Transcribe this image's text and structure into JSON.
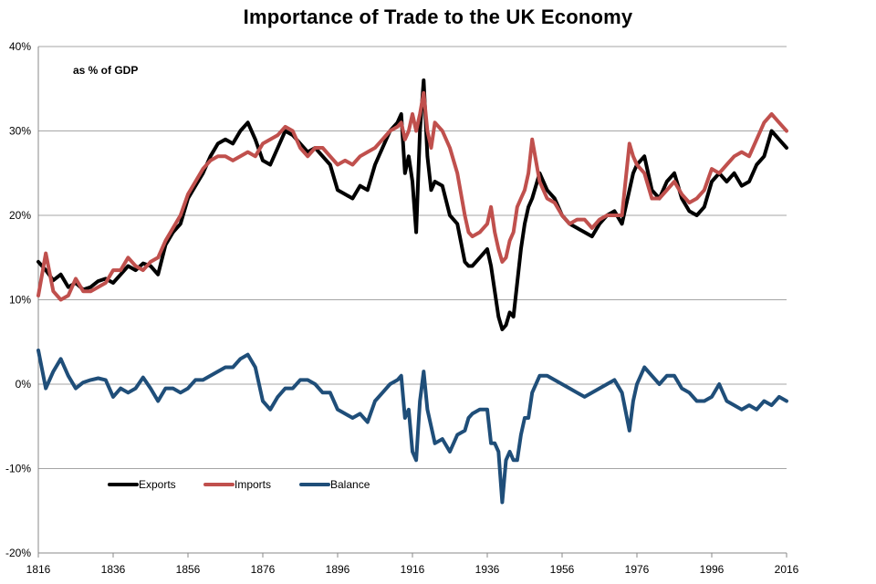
{
  "chart_data": {
    "type": "line",
    "title": "Importance of Trade to the UK Economy",
    "annotation": "as % of GDP",
    "xlabel": "",
    "ylabel": "",
    "xlim": [
      1816,
      2016
    ],
    "ylim": [
      -20,
      40
    ],
    "y_ticks": [
      "-20%",
      "-10%",
      "0%",
      "10%",
      "20%",
      "30%",
      "40%"
    ],
    "x_ticks": [
      "1816",
      "1836",
      "1856",
      "1876",
      "1896",
      "1916",
      "1936",
      "1956",
      "1976",
      "1996",
      "2016"
    ],
    "grid": "horizontal",
    "legend_position": "bottom-left",
    "series": [
      {
        "name": "Exports",
        "color": "#000000",
        "x": [
          1816,
          1818,
          1820,
          1822,
          1824,
          1826,
          1828,
          1830,
          1832,
          1834,
          1836,
          1838,
          1840,
          1842,
          1844,
          1846,
          1848,
          1850,
          1852,
          1854,
          1856,
          1858,
          1860,
          1862,
          1864,
          1866,
          1868,
          1870,
          1872,
          1874,
          1876,
          1878,
          1880,
          1882,
          1884,
          1886,
          1888,
          1890,
          1892,
          1894,
          1896,
          1898,
          1900,
          1902,
          1904,
          1906,
          1908,
          1910,
          1912,
          1913,
          1914,
          1915,
          1916,
          1917,
          1918,
          1919,
          1920,
          1921,
          1922,
          1924,
          1926,
          1928,
          1930,
          1931,
          1932,
          1934,
          1936,
          1937,
          1938,
          1939,
          1940,
          1941,
          1942,
          1943,
          1944,
          1945,
          1946,
          1947,
          1948,
          1950,
          1952,
          1954,
          1956,
          1958,
          1960,
          1962,
          1964,
          1966,
          1968,
          1970,
          1972,
          1974,
          1975,
          1976,
          1978,
          1980,
          1982,
          1984,
          1986,
          1988,
          1990,
          1992,
          1994,
          1996,
          1998,
          2000,
          2002,
          2004,
          2006,
          2008,
          2010,
          2012,
          2014,
          2016
        ],
        "values": [
          14.5,
          13.5,
          12.3,
          13.0,
          11.5,
          12.0,
          11.2,
          11.5,
          12.2,
          12.5,
          12.0,
          13.0,
          14.0,
          13.5,
          14.3,
          14.0,
          13.0,
          16.5,
          18.0,
          19.0,
          22.0,
          23.5,
          25.0,
          27.0,
          28.5,
          29.0,
          28.5,
          30.0,
          31.0,
          29.0,
          26.5,
          26.0,
          28.0,
          30.0,
          29.5,
          28.5,
          27.5,
          28.0,
          27.0,
          26.0,
          23.0,
          22.5,
          22.0,
          23.5,
          23.0,
          26.0,
          28.0,
          30.0,
          31.0,
          32.0,
          25.0,
          27.0,
          24.0,
          18.0,
          30.0,
          36.0,
          27.0,
          23.0,
          24.0,
          23.5,
          20.0,
          19.0,
          14.5,
          14.0,
          14.0,
          15.0,
          16.0,
          14.0,
          11.0,
          8.0,
          6.5,
          7.0,
          8.5,
          8.0,
          12.0,
          16.0,
          19.0,
          21.0,
          22.0,
          25.0,
          23.0,
          22.0,
          20.0,
          19.0,
          18.5,
          18.0,
          17.5,
          19.0,
          20.0,
          20.5,
          19.0,
          23.0,
          25.0,
          26.0,
          27.0,
          23.0,
          22.0,
          24.0,
          25.0,
          22.0,
          20.5,
          20.0,
          21.0,
          24.0,
          25.0,
          24.0,
          25.0,
          23.5,
          24.0,
          26.0,
          27.0,
          30.0,
          29.0,
          28.0
        ]
      },
      {
        "name": "Imports",
        "color": "#c0504d",
        "x": [
          1816,
          1818,
          1820,
          1822,
          1824,
          1826,
          1828,
          1830,
          1832,
          1834,
          1836,
          1838,
          1840,
          1842,
          1844,
          1846,
          1848,
          1850,
          1852,
          1854,
          1856,
          1858,
          1860,
          1862,
          1864,
          1866,
          1868,
          1870,
          1872,
          1874,
          1876,
          1878,
          1880,
          1882,
          1884,
          1886,
          1888,
          1890,
          1892,
          1894,
          1896,
          1898,
          1900,
          1902,
          1904,
          1906,
          1908,
          1910,
          1912,
          1913,
          1914,
          1915,
          1916,
          1917,
          1918,
          1919,
          1920,
          1921,
          1922,
          1924,
          1926,
          1928,
          1930,
          1931,
          1932,
          1934,
          1936,
          1937,
          1938,
          1939,
          1940,
          1941,
          1942,
          1943,
          1944,
          1945,
          1946,
          1947,
          1948,
          1950,
          1952,
          1954,
          1956,
          1958,
          1960,
          1962,
          1964,
          1966,
          1968,
          1970,
          1972,
          1974,
          1975,
          1976,
          1978,
          1980,
          1982,
          1984,
          1986,
          1988,
          1990,
          1992,
          1994,
          1996,
          1998,
          2000,
          2002,
          2004,
          2006,
          2008,
          2010,
          2012,
          2014,
          2016
        ],
        "values": [
          10.5,
          15.5,
          11.0,
          10.0,
          10.5,
          12.5,
          11.0,
          11.0,
          11.5,
          12.0,
          13.5,
          13.5,
          15.0,
          14.0,
          13.5,
          14.5,
          15.0,
          17.0,
          18.5,
          20.0,
          22.5,
          24.0,
          25.5,
          26.5,
          27.0,
          27.0,
          26.5,
          27.0,
          27.5,
          27.0,
          28.5,
          29.0,
          29.5,
          30.5,
          30.0,
          28.0,
          27.0,
          28.0,
          28.0,
          27.0,
          26.0,
          26.5,
          26.0,
          27.0,
          27.5,
          28.0,
          29.0,
          30.0,
          30.5,
          31.0,
          29.0,
          30.0,
          32.0,
          30.0,
          32.0,
          34.5,
          30.0,
          28.0,
          31.0,
          30.0,
          28.0,
          25.0,
          20.0,
          18.0,
          17.5,
          18.0,
          19.0,
          21.0,
          18.0,
          16.0,
          14.5,
          15.0,
          17.0,
          18.0,
          21.0,
          22.0,
          23.0,
          25.0,
          29.0,
          24.0,
          22.0,
          21.5,
          20.0,
          19.0,
          19.5,
          19.5,
          18.5,
          19.5,
          20.0,
          20.0,
          20.0,
          28.5,
          27.0,
          26.0,
          25.0,
          22.0,
          22.0,
          23.0,
          24.0,
          22.5,
          21.5,
          22.0,
          23.0,
          25.5,
          25.0,
          26.0,
          27.0,
          27.5,
          27.0,
          29.0,
          31.0,
          32.0,
          31.0,
          30.0
        ]
      },
      {
        "name": "Balance",
        "color": "#1f4e79",
        "x": [
          1816,
          1818,
          1820,
          1822,
          1824,
          1826,
          1828,
          1830,
          1832,
          1834,
          1836,
          1838,
          1840,
          1842,
          1844,
          1846,
          1848,
          1850,
          1852,
          1854,
          1856,
          1858,
          1860,
          1862,
          1864,
          1866,
          1868,
          1870,
          1872,
          1874,
          1876,
          1878,
          1880,
          1882,
          1884,
          1886,
          1888,
          1890,
          1892,
          1894,
          1896,
          1898,
          1900,
          1902,
          1904,
          1906,
          1908,
          1910,
          1912,
          1913,
          1914,
          1915,
          1916,
          1917,
          1918,
          1919,
          1920,
          1921,
          1922,
          1924,
          1926,
          1928,
          1930,
          1931,
          1932,
          1934,
          1936,
          1937,
          1938,
          1939,
          1940,
          1941,
          1942,
          1943,
          1944,
          1945,
          1946,
          1947,
          1948,
          1950,
          1952,
          1954,
          1956,
          1958,
          1960,
          1962,
          1964,
          1966,
          1968,
          1970,
          1972,
          1974,
          1975,
          1976,
          1978,
          1980,
          1982,
          1984,
          1986,
          1988,
          1990,
          1992,
          1994,
          1996,
          1998,
          2000,
          2002,
          2004,
          2006,
          2008,
          2010,
          2012,
          2014,
          2016
        ],
        "values": [
          4.0,
          -0.5,
          1.5,
          3.0,
          1.0,
          -0.5,
          0.2,
          0.5,
          0.7,
          0.5,
          -1.5,
          -0.5,
          -1.0,
          -0.5,
          0.8,
          -0.5,
          -2.0,
          -0.5,
          -0.5,
          -1.0,
          -0.5,
          0.5,
          0.5,
          1.0,
          1.5,
          2.0,
          2.0,
          3.0,
          3.5,
          2.0,
          -2.0,
          -3.0,
          -1.5,
          -0.5,
          -0.5,
          0.5,
          0.5,
          0.0,
          -1.0,
          -1.0,
          -3.0,
          -3.5,
          -4.0,
          -3.5,
          -4.5,
          -2.0,
          -1.0,
          0.0,
          0.5,
          1.0,
          -4.0,
          -3.0,
          -8.0,
          -9.0,
          -2.0,
          1.5,
          -3.0,
          -5.0,
          -7.0,
          -6.5,
          -8.0,
          -6.0,
          -5.5,
          -4.0,
          -3.5,
          -3.0,
          -3.0,
          -7.0,
          -7.0,
          -8.0,
          -14.0,
          -9.0,
          -8.0,
          -9.0,
          -9.0,
          -6.0,
          -4.0,
          -4.0,
          -1.0,
          1.0,
          1.0,
          0.5,
          0.0,
          -0.5,
          -1.0,
          -1.5,
          -1.0,
          -0.5,
          0.0,
          0.5,
          -1.0,
          -5.5,
          -2.0,
          0.0,
          2.0,
          1.0,
          0.0,
          1.0,
          1.0,
          -0.5,
          -1.0,
          -2.0,
          -2.0,
          -1.5,
          0.0,
          -2.0,
          -2.5,
          -3.0,
          -2.5,
          -3.0,
          -2.0,
          -2.5,
          -1.5,
          -2.0
        ]
      }
    ]
  }
}
